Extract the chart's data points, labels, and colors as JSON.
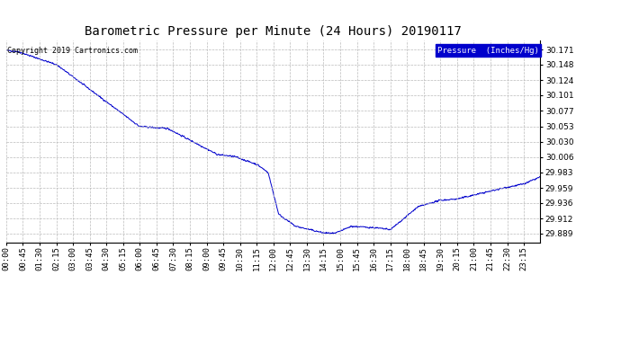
{
  "title": "Barometric Pressure per Minute (24 Hours) 20190117",
  "copyright": "Copyright 2019 Cartronics.com",
  "legend_label": "Pressure  (Inches/Hg)",
  "line_color": "#0000cc",
  "background_color": "#ffffff",
  "plot_bg_color": "#ffffff",
  "legend_bg_color": "#0000cc",
  "legend_text_color": "#ffffff",
  "yticks": [
    29.889,
    29.912,
    29.936,
    29.959,
    29.983,
    30.006,
    30.03,
    30.053,
    30.077,
    30.101,
    30.124,
    30.148,
    30.171
  ],
  "ylim": [
    29.875,
    30.185
  ],
  "grid_color": "#bbbbbb",
  "grid_style": "--",
  "title_fontsize": 10,
  "tick_fontsize": 6.5,
  "copyright_fontsize": 6
}
